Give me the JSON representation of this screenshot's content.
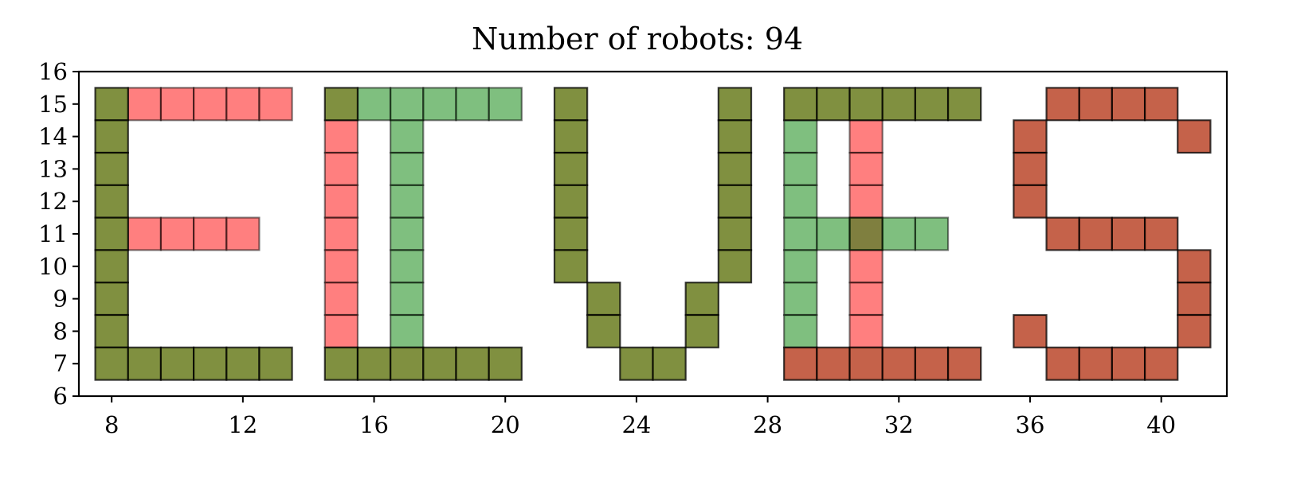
{
  "chart_data": {
    "type": "scatter",
    "title": "Number of robots: 94",
    "xlabel": "",
    "ylabel": "",
    "xlim": [
      7,
      42
    ],
    "ylim": [
      6,
      16
    ],
    "xticks": [
      8,
      12,
      16,
      20,
      24,
      28,
      32,
      36,
      40
    ],
    "yticks": [
      6,
      7,
      8,
      9,
      10,
      11,
      12,
      13,
      14,
      15,
      16
    ],
    "marker": "square-cell",
    "grid": false,
    "legend": "none",
    "series": [
      {
        "color": "#ff0000",
        "alpha": 0.5,
        "points": [
          [
            9,
            15
          ],
          [
            10,
            15
          ],
          [
            11,
            15
          ],
          [
            12,
            15
          ],
          [
            13,
            15
          ],
          [
            9,
            11
          ],
          [
            10,
            11
          ],
          [
            11,
            11
          ],
          [
            12,
            11
          ],
          [
            15,
            14
          ],
          [
            15,
            13
          ],
          [
            15,
            12
          ],
          [
            15,
            11
          ],
          [
            15,
            10
          ],
          [
            15,
            9
          ],
          [
            15,
            8
          ],
          [
            31,
            14
          ],
          [
            31,
            13
          ],
          [
            31,
            12
          ],
          [
            31,
            11
          ],
          [
            31,
            10
          ],
          [
            31,
            9
          ],
          [
            31,
            8
          ]
        ]
      },
      {
        "color": "#008000",
        "alpha": 0.5,
        "points": [
          [
            16,
            15
          ],
          [
            17,
            15
          ],
          [
            18,
            15
          ],
          [
            19,
            15
          ],
          [
            20,
            15
          ],
          [
            17,
            14
          ],
          [
            17,
            13
          ],
          [
            17,
            12
          ],
          [
            17,
            11
          ],
          [
            17,
            10
          ],
          [
            17,
            9
          ],
          [
            17,
            8
          ],
          [
            29,
            14
          ],
          [
            29,
            13
          ],
          [
            29,
            12
          ],
          [
            29,
            11
          ],
          [
            29,
            10
          ],
          [
            29,
            9
          ],
          [
            29,
            8
          ],
          [
            30,
            11
          ],
          [
            31,
            11
          ],
          [
            32,
            11
          ],
          [
            33,
            11
          ]
        ]
      },
      {
        "color": "#b22d0d",
        "alpha": 0.75,
        "points": [
          [
            29,
            7
          ],
          [
            30,
            7
          ],
          [
            31,
            7
          ],
          [
            32,
            7
          ],
          [
            33,
            7
          ],
          [
            34,
            7
          ],
          [
            37,
            15
          ],
          [
            38,
            15
          ],
          [
            39,
            15
          ],
          [
            40,
            15
          ],
          [
            36,
            14
          ],
          [
            36,
            13
          ],
          [
            36,
            12
          ],
          [
            41,
            14
          ],
          [
            37,
            11
          ],
          [
            38,
            11
          ],
          [
            39,
            11
          ],
          [
            40,
            11
          ],
          [
            41,
            10
          ],
          [
            41,
            9
          ],
          [
            41,
            8
          ],
          [
            36,
            8
          ],
          [
            37,
            7
          ],
          [
            38,
            7
          ],
          [
            39,
            7
          ],
          [
            40,
            7
          ]
        ]
      },
      {
        "color": "#556b00",
        "alpha": 0.75,
        "points": [
          [
            8,
            15
          ],
          [
            8,
            14
          ],
          [
            8,
            13
          ],
          [
            8,
            12
          ],
          [
            8,
            11
          ],
          [
            8,
            10
          ],
          [
            8,
            9
          ],
          [
            8,
            8
          ],
          [
            8,
            7
          ],
          [
            9,
            7
          ],
          [
            10,
            7
          ],
          [
            11,
            7
          ],
          [
            12,
            7
          ],
          [
            13,
            7
          ],
          [
            15,
            15
          ],
          [
            15,
            7
          ],
          [
            16,
            7
          ],
          [
            17,
            7
          ],
          [
            18,
            7
          ],
          [
            19,
            7
          ],
          [
            20,
            7
          ],
          [
            22,
            15
          ],
          [
            22,
            14
          ],
          [
            22,
            13
          ],
          [
            22,
            12
          ],
          [
            22,
            11
          ],
          [
            22,
            10
          ],
          [
            23,
            9
          ],
          [
            23,
            8
          ],
          [
            24,
            7
          ],
          [
            25,
            7
          ],
          [
            26,
            9
          ],
          [
            26,
            8
          ],
          [
            27,
            15
          ],
          [
            27,
            14
          ],
          [
            27,
            13
          ],
          [
            27,
            12
          ],
          [
            27,
            11
          ],
          [
            27,
            10
          ],
          [
            29,
            15
          ],
          [
            30,
            15
          ],
          [
            31,
            15
          ],
          [
            32,
            15
          ],
          [
            33,
            15
          ],
          [
            34,
            15
          ]
        ]
      }
    ]
  }
}
